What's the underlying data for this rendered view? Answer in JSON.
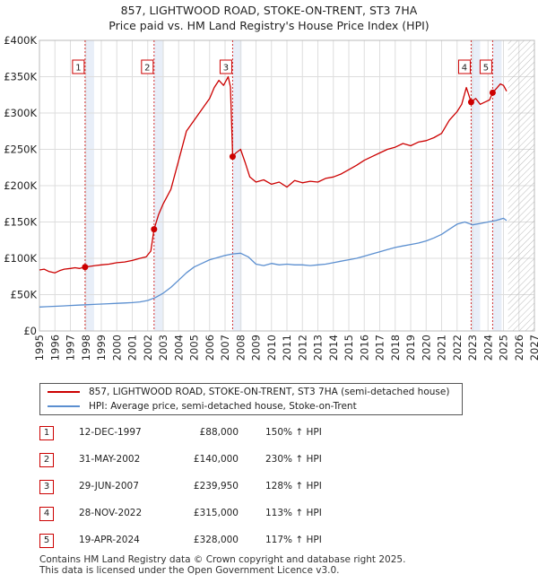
{
  "title": {
    "line1": "857, LIGHTWOOD ROAD, STOKE-ON-TRENT, ST3 7HA",
    "line2": "Price paid vs. HM Land Registry's House Price Index (HPI)"
  },
  "legend": {
    "property_label": "857, LIGHTWOOD ROAD, STOKE-ON-TRENT, ST3 7HA (semi-detached house)",
    "hpi_label": "HPI: Average price, semi-detached house, Stoke-on-Trent"
  },
  "transactions": [
    {
      "num": "1",
      "date": "12-DEC-1997",
      "price": "£88,000",
      "hpi": "150% ↑ HPI"
    },
    {
      "num": "2",
      "date": "31-MAY-2002",
      "price": "£140,000",
      "hpi": "230% ↑ HPI"
    },
    {
      "num": "3",
      "date": "29-JUN-2007",
      "price": "£239,950",
      "hpi": "128% ↑ HPI"
    },
    {
      "num": "4",
      "date": "28-NOV-2022",
      "price": "£315,000",
      "hpi": "113% ↑ HPI"
    },
    {
      "num": "5",
      "date": "19-APR-2024",
      "price": "£328,000",
      "hpi": "117% ↑ HPI"
    }
  ],
  "footer": {
    "line1": "Contains HM Land Registry data © Crown copyright and database right 2025.",
    "line2": "This data is licensed under the Open Government Licence v3.0."
  },
  "colors": {
    "property_line": "#cc0000",
    "hpi_line": "#5b8fd0",
    "grid": "#dddddd",
    "band": "#e8eef8",
    "marker_border": "#cc0000"
  },
  "chart_data": {
    "type": "line",
    "title": "857, LIGHTWOOD ROAD, STOKE-ON-TRENT, ST3 7HA — Price paid vs. HM Land Registry's House Price Index (HPI)",
    "xlabel": "",
    "ylabel": "",
    "xlim": [
      1995,
      2027
    ],
    "ylim": [
      0,
      400000
    ],
    "x_ticks": [
      1995,
      1996,
      1997,
      1998,
      1999,
      2000,
      2001,
      2002,
      2003,
      2004,
      2005,
      2006,
      2007,
      2008,
      2009,
      2010,
      2011,
      2012,
      2013,
      2014,
      2015,
      2016,
      2017,
      2018,
      2019,
      2020,
      2021,
      2022,
      2023,
      2024,
      2025,
      2026,
      2027
    ],
    "y_ticks": [
      0,
      50000,
      100000,
      150000,
      200000,
      250000,
      300000,
      350000,
      400000
    ],
    "y_tick_labels": [
      "£0",
      "£50K",
      "£100K",
      "£150K",
      "£200K",
      "£250K",
      "£300K",
      "£350K",
      "£400K"
    ],
    "grid": true,
    "forecast_from": 2025.3,
    "series": [
      {
        "name": "857, LIGHTWOOD ROAD, STOKE-ON-TRENT, ST3 7HA (semi-detached house)",
        "x": [
          1995.0,
          1995.3,
          1995.6,
          1996.0,
          1996.3,
          1996.6,
          1997.0,
          1997.3,
          1997.6,
          1997.95,
          1998.3,
          1998.6,
          1999.0,
          1999.5,
          2000.0,
          2000.5,
          2001.0,
          2001.5,
          2001.9,
          2002.2,
          2002.41,
          2002.7,
          2003.0,
          2003.5,
          2004.0,
          2004.5,
          2005.0,
          2005.5,
          2006.0,
          2006.3,
          2006.6,
          2006.9,
          2007.2,
          2007.35,
          2007.49,
          2007.7,
          2008.0,
          2008.3,
          2008.6,
          2009.0,
          2009.5,
          2010.0,
          2010.5,
          2011.0,
          2011.5,
          2012.0,
          2012.5,
          2013.0,
          2013.5,
          2014.0,
          2014.5,
          2015.0,
          2015.5,
          2016.0,
          2016.5,
          2017.0,
          2017.5,
          2018.0,
          2018.5,
          2019.0,
          2019.5,
          2020.0,
          2020.5,
          2021.0,
          2021.5,
          2022.0,
          2022.3,
          2022.6,
          2022.91,
          2023.2,
          2023.5,
          2023.8,
          2024.1,
          2024.3,
          2024.6,
          2024.8,
          2025.0,
          2025.2
        ],
        "values": [
          84000,
          85000,
          82000,
          80000,
          83000,
          85000,
          86000,
          87000,
          86000,
          88000,
          89000,
          90000,
          91000,
          92000,
          94000,
          95000,
          97000,
          100000,
          102000,
          110000,
          140000,
          160000,
          175000,
          195000,
          235000,
          275000,
          290000,
          305000,
          320000,
          335000,
          345000,
          338000,
          350000,
          336000,
          239950,
          245000,
          250000,
          232000,
          212000,
          205000,
          208000,
          202000,
          205000,
          198000,
          207000,
          204000,
          206000,
          205000,
          210000,
          212000,
          216000,
          222000,
          228000,
          235000,
          240000,
          245000,
          250000,
          253000,
          258000,
          255000,
          260000,
          262000,
          266000,
          272000,
          290000,
          302000,
          312000,
          335000,
          315000,
          320000,
          312000,
          315000,
          318000,
          328000,
          335000,
          340000,
          338000,
          330000
        ]
      },
      {
        "name": "HPI: Average price, semi-detached house, Stoke-on-Trent",
        "x": [
          1995.0,
          1995.5,
          1996.0,
          1996.5,
          1997.0,
          1997.5,
          1998.0,
          1998.5,
          1999.0,
          1999.5,
          2000.0,
          2000.5,
          2001.0,
          2001.5,
          2002.0,
          2002.5,
          2003.0,
          2003.5,
          2004.0,
          2004.5,
          2005.0,
          2005.5,
          2006.0,
          2006.5,
          2007.0,
          2007.5,
          2008.0,
          2008.5,
          2009.0,
          2009.5,
          2010.0,
          2010.5,
          2011.0,
          2011.5,
          2012.0,
          2012.5,
          2013.0,
          2013.5,
          2014.0,
          2014.5,
          2015.0,
          2015.5,
          2016.0,
          2016.5,
          2017.0,
          2017.5,
          2018.0,
          2018.5,
          2019.0,
          2019.5,
          2020.0,
          2020.5,
          2021.0,
          2021.5,
          2022.0,
          2022.5,
          2023.0,
          2023.5,
          2024.0,
          2024.5,
          2025.0,
          2025.2
        ],
        "values": [
          33000,
          33500,
          34000,
          34500,
          35000,
          35500,
          36000,
          36500,
          37000,
          37500,
          38000,
          38500,
          39000,
          40000,
          42000,
          46000,
          52000,
          60000,
          70000,
          80000,
          88000,
          93000,
          98000,
          101000,
          104000,
          106000,
          107000,
          102000,
          92000,
          90000,
          93000,
          91000,
          92000,
          91000,
          91000,
          90000,
          91000,
          92000,
          94000,
          96000,
          98000,
          100000,
          103000,
          106000,
          109000,
          112000,
          115000,
          117000,
          119000,
          121000,
          124000,
          128000,
          133000,
          140000,
          147000,
          150000,
          146000,
          148000,
          150000,
          152000,
          155000,
          152000
        ]
      }
    ],
    "sale_points": [
      {
        "label": "1",
        "x": 1997.95,
        "value": 88000
      },
      {
        "label": "2",
        "x": 2002.41,
        "value": 140000
      },
      {
        "label": "3",
        "x": 2007.49,
        "value": 239950
      },
      {
        "label": "4",
        "x": 2022.91,
        "value": 315000
      },
      {
        "label": "5",
        "x": 2024.3,
        "value": 328000
      }
    ]
  }
}
